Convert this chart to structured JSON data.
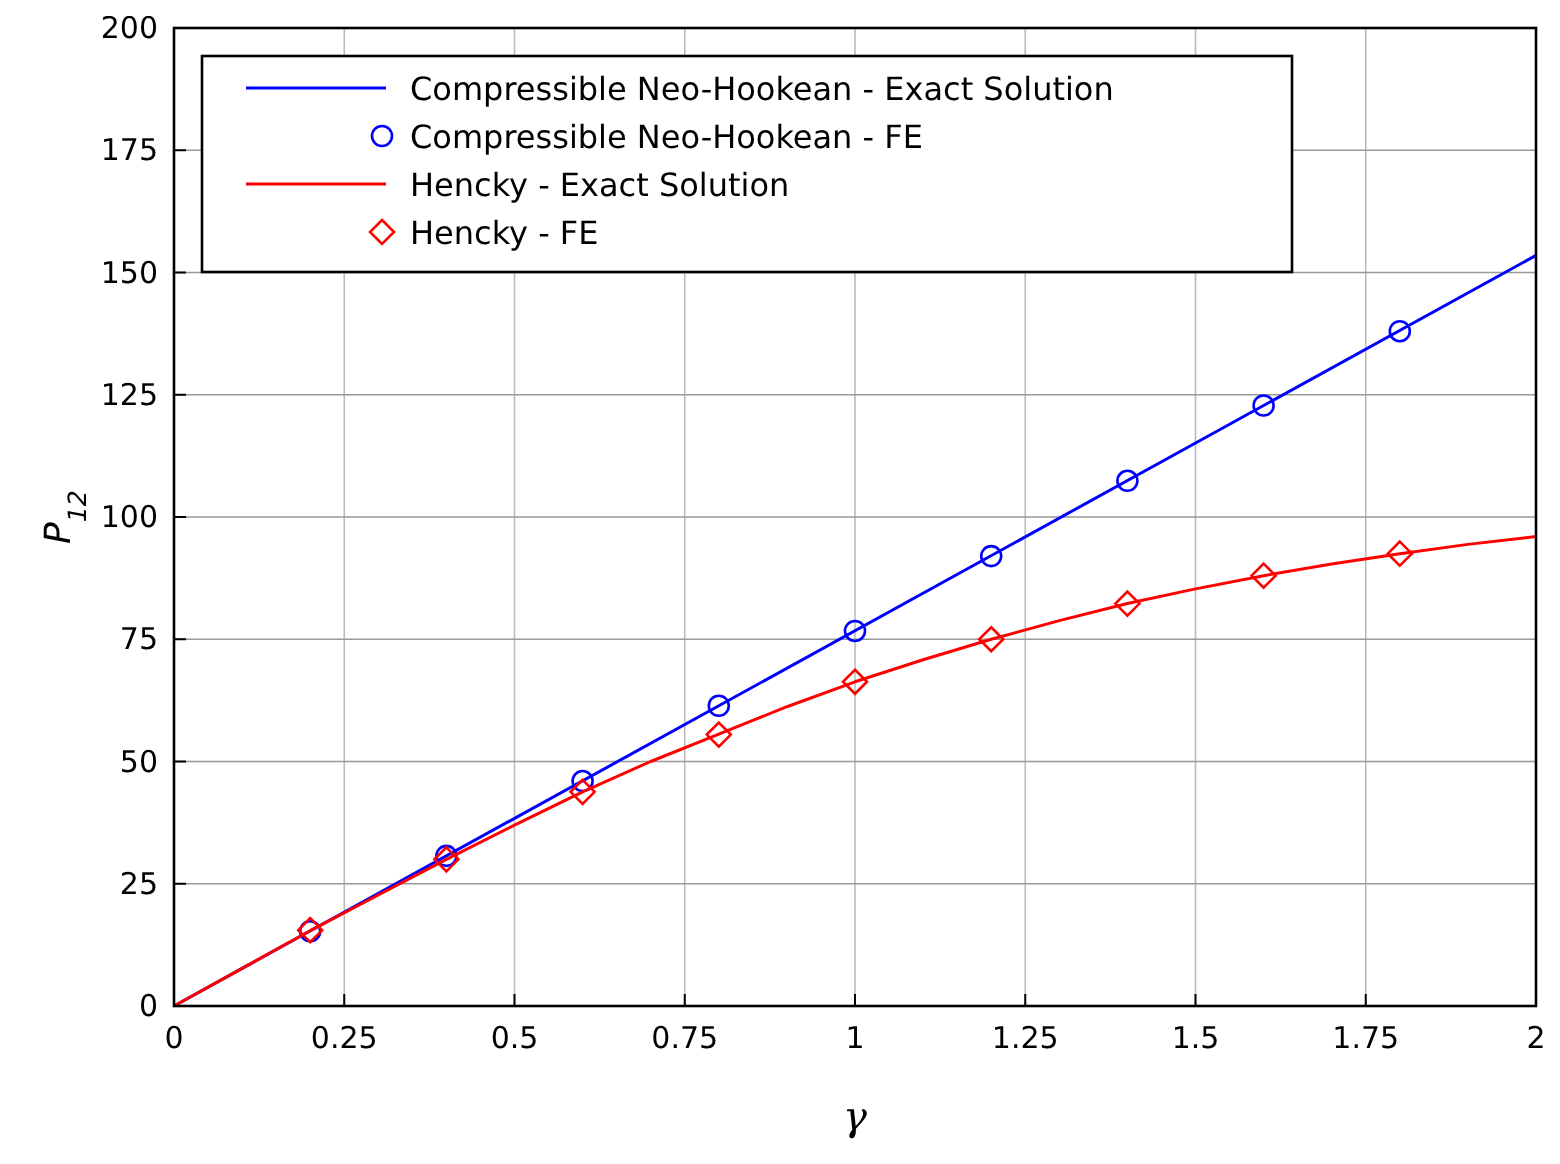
{
  "chart_data": {
    "type": "line",
    "xlabel": "γ",
    "ylabel": "P$_{12}$",
    "xlim": [
      0,
      2
    ],
    "ylim": [
      0,
      200
    ],
    "xticks": [
      0,
      0.25,
      0.5,
      0.75,
      1,
      1.25,
      1.5,
      1.75,
      2
    ],
    "yticks": [
      0,
      25,
      50,
      75,
      100,
      125,
      150,
      175,
      200
    ],
    "grid": true,
    "legend": "top left",
    "series": [
      {
        "name": "Compressible Neo-Hookean - Exact Solution",
        "color": "#0000ff",
        "marker": "none",
        "x": [
          0,
          2
        ],
        "values": [
          0,
          153.5
        ]
      },
      {
        "name": "Compressible Neo-Hookean - FE",
        "type": "scatter",
        "color": "#0000ff",
        "marker": "circle",
        "x": [
          0.2,
          0.4,
          0.6,
          0.8,
          1,
          1.2,
          1.4,
          1.6,
          1.8
        ],
        "values": [
          15.3,
          30.7,
          46,
          61.4,
          76.7,
          92,
          107.4,
          122.8,
          138
        ]
      },
      {
        "name": "Hencky - Exact Solution",
        "color": "#ff0000",
        "marker": "none",
        "x": [
          0,
          0.1,
          0.2,
          0.3,
          0.4,
          0.5,
          0.6,
          0.7,
          0.8,
          0.9,
          1,
          1.1,
          1.2,
          1.3,
          1.4,
          1.5,
          1.6,
          1.7,
          1.8,
          1.9,
          2
        ],
        "values": [
          0,
          7.7,
          15.4,
          22.7,
          30,
          37,
          43.8,
          50,
          55.6,
          61.2,
          66.3,
          70.8,
          75,
          78.8,
          82.3,
          85.3,
          88,
          90.4,
          92.5,
          94.4,
          96
        ]
      },
      {
        "name": "Hencky - FE",
        "type": "scatter",
        "color": "#ff0000",
        "marker": "diamond",
        "x": [
          0.2,
          0.4,
          0.6,
          0.8,
          1,
          1.2,
          1.4,
          1.6,
          1.8
        ],
        "values": [
          15.5,
          30,
          43.8,
          55.5,
          66.3,
          75,
          82.3,
          88,
          92.5
        ]
      }
    ]
  }
}
